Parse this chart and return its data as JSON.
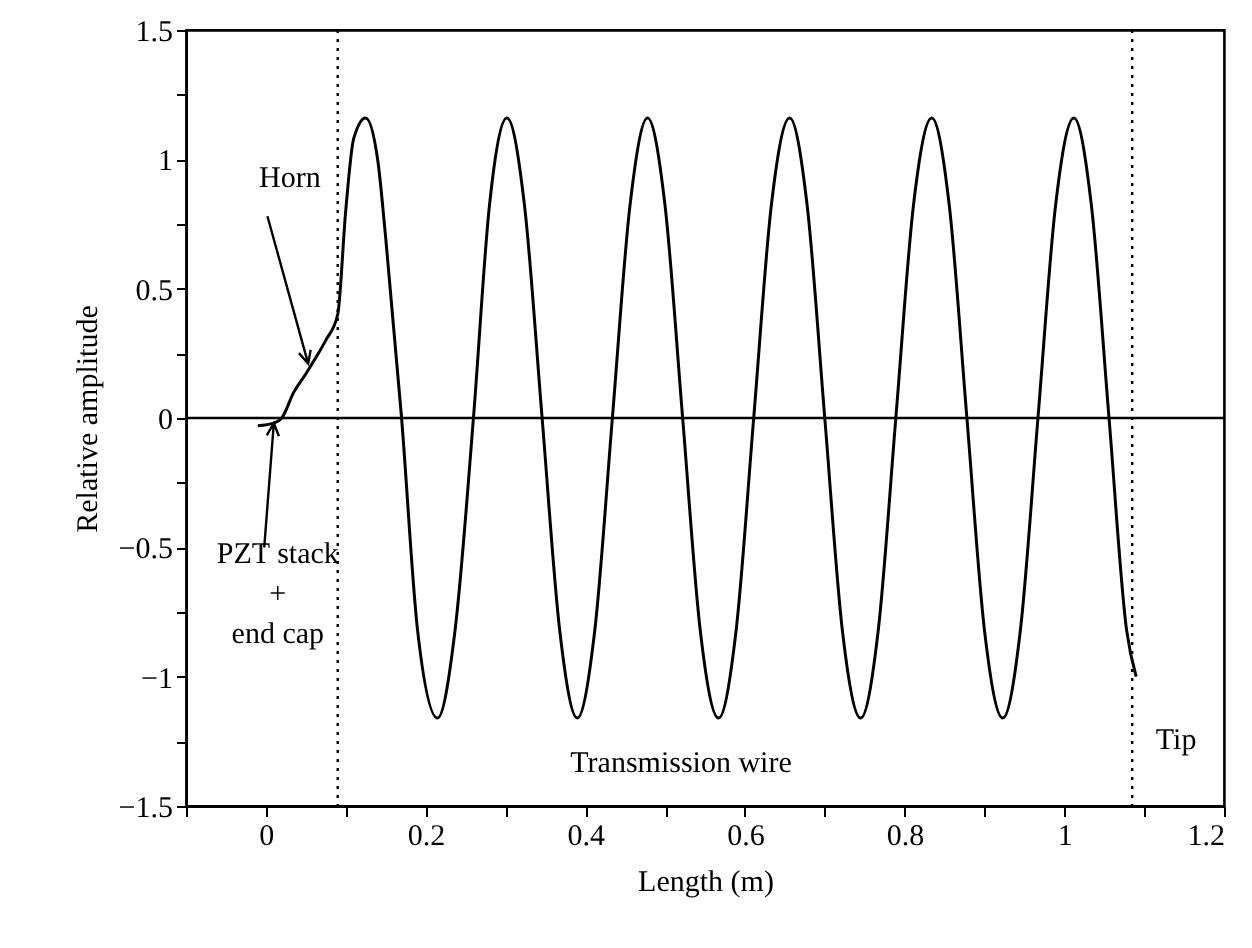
{
  "chart_data": {
    "type": "line",
    "xlabel": "Length (m)",
    "ylabel": "Relative amplitude",
    "xlim": [
      -0.1,
      1.2
    ],
    "ylim": [
      -1.5,
      1.5
    ],
    "xticks": [
      {
        "value": -0.1,
        "label": null
      },
      0,
      {
        "value": 0.1,
        "label": null
      },
      0.2,
      {
        "value": 0.3,
        "label": null
      },
      0.4,
      {
        "value": 0.5,
        "label": null
      },
      0.6,
      {
        "value": 0.7,
        "label": null
      },
      0.8,
      {
        "value": 0.9,
        "label": null
      },
      1,
      {
        "value": 1.1,
        "label": null
      },
      1.2
    ],
    "yticks": [
      -1.5,
      {
        "value": -1.25,
        "label": null
      },
      -1,
      {
        "value": -0.75,
        "label": null
      },
      -0.5,
      {
        "value": -0.25,
        "label": null
      },
      0,
      {
        "value": 0.25,
        "label": null
      },
      0.5,
      {
        "value": 0.75,
        "label": null
      },
      1,
      {
        "value": 1.25,
        "label": null
      },
      1.5
    ],
    "line_style": "solid",
    "series": [
      {
        "color": "#000000",
        "x": [
          -0.01,
          0.01,
          0.02,
          0.035,
          0.05,
          0.06,
          0.075,
          0.09,
          0.1,
          0.11,
          0.125,
          0.14,
          0.15,
          0.17,
          0.19,
          0.215,
          0.237,
          0.26,
          0.28,
          0.302,
          0.324,
          0.346,
          0.368,
          0.39,
          0.412,
          0.434,
          0.456,
          0.478,
          0.5,
          0.522,
          0.544,
          0.567,
          0.589,
          0.611,
          0.633,
          0.656,
          0.678,
          0.7,
          0.722,
          0.745,
          0.767,
          0.789,
          0.811,
          0.834,
          0.856,
          0.878,
          0.9,
          0.923,
          0.945,
          0.967,
          0.989,
          1.012,
          1.034,
          1.056,
          1.078,
          1.09
        ],
        "values": [
          -0.03,
          -0.02,
          0,
          0.1,
          0.17,
          0.22,
          0.3,
          0.4,
          0.8,
          1.08,
          1.16,
          1.0,
          0.7,
          0,
          -0.82,
          -1.16,
          -0.82,
          0,
          0.82,
          1.16,
          0.82,
          0,
          -0.82,
          -1.16,
          -0.82,
          0,
          0.82,
          1.16,
          0.82,
          0,
          -0.82,
          -1.16,
          -0.82,
          0,
          0.82,
          1.16,
          0.82,
          0,
          -0.82,
          -1.16,
          -0.82,
          0,
          0.82,
          1.16,
          0.82,
          0,
          -0.82,
          -1.16,
          -0.82,
          0,
          0.82,
          1.16,
          0.82,
          0,
          -0.82,
          -1.0
        ]
      }
    ],
    "ref_lines": [
      {
        "axis": "y",
        "value": 0,
        "line_style": "solid",
        "color": "#000000"
      },
      {
        "axis": "x",
        "value": 0.09,
        "line_style": "dotted",
        "color": "#000000"
      },
      {
        "axis": "x",
        "value": 1.085,
        "line_style": "dotted",
        "color": "#000000"
      }
    ],
    "annotations": [
      {
        "text": "Horn",
        "x": 0.053,
        "y": 0.21
      },
      {
        "text": "PZT stack\n+\nend cap",
        "x": 0.01,
        "y": -0.02
      },
      "Transmission wire",
      "Tip"
    ]
  }
}
